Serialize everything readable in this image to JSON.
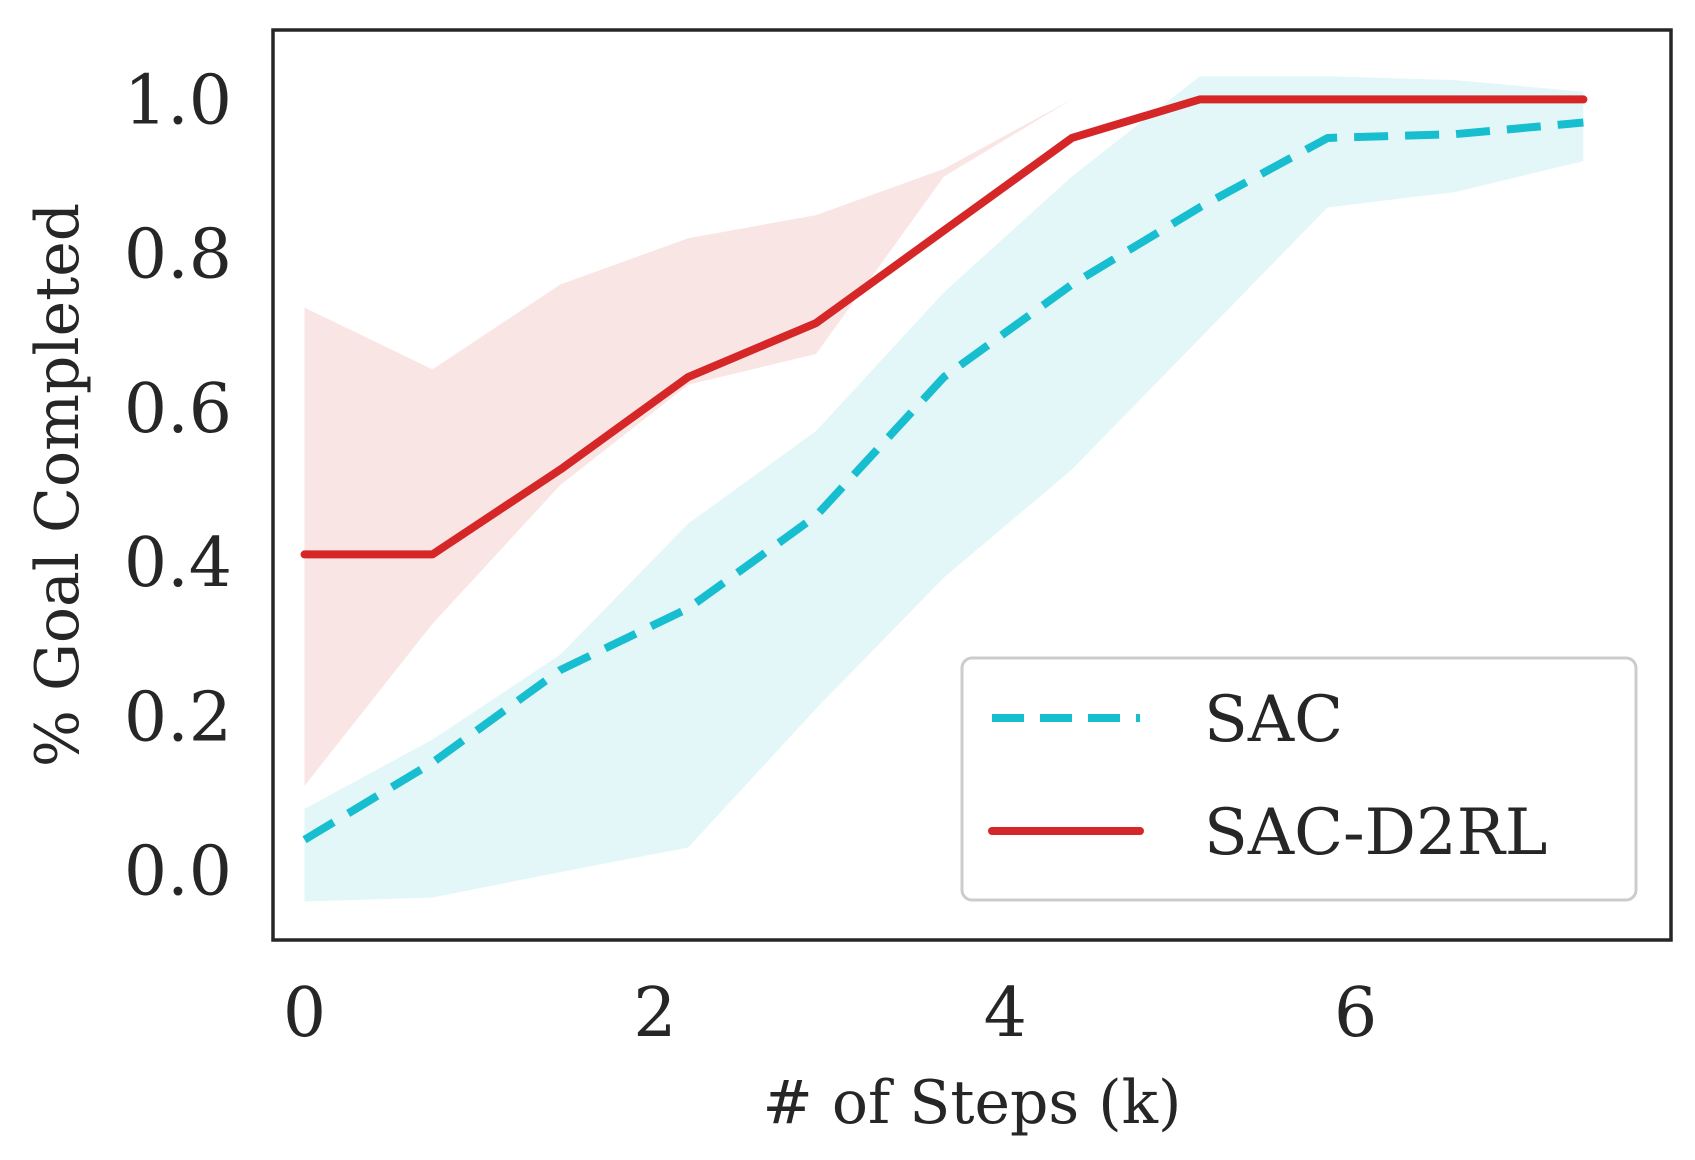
{
  "chart_data": {
    "type": "line",
    "title": "",
    "xlabel": "# of Steps (k)",
    "ylabel": "% Goal Completed",
    "xlim": [
      -0.18,
      7.8
    ],
    "ylim": [
      -0.09,
      1.09
    ],
    "xticks": [
      0,
      2,
      4,
      6
    ],
    "yticks": [
      0.0,
      0.2,
      0.4,
      0.6,
      0.8,
      1.0
    ],
    "x": [
      0,
      0.73,
      1.46,
      2.19,
      2.92,
      3.65,
      4.38,
      5.11,
      5.84,
      6.57,
      7.3
    ],
    "grid": false,
    "legend_position": "lower-right",
    "series": [
      {
        "name": "SAC",
        "color": "#17becf",
        "style": "dashed",
        "values": [
          0.04,
          0.14,
          0.26,
          0.34,
          0.46,
          0.64,
          0.76,
          0.86,
          0.95,
          0.955,
          0.97
        ],
        "band_lower": [
          -0.04,
          -0.035,
          -0.002,
          0.03,
          0.21,
          0.38,
          0.52,
          0.69,
          0.86,
          0.88,
          0.92
        ],
        "band_upper": [
          0.08,
          0.17,
          0.28,
          0.45,
          0.57,
          0.75,
          0.9,
          1.03,
          1.03,
          1.025,
          1.01
        ]
      },
      {
        "name": "SAC-D2RL",
        "color": "#d62728",
        "style": "solid",
        "values": [
          0.41,
          0.41,
          0.52,
          0.64,
          0.71,
          0.83,
          0.95,
          1.0,
          1.0,
          1.0,
          1.0
        ],
        "band_lower": [
          0.11,
          0.32,
          0.5,
          0.63,
          0.67,
          0.9,
          1.0,
          1.0,
          1.0,
          1.0,
          1.0
        ],
        "band_upper": [
          0.73,
          0.65,
          0.76,
          0.82,
          0.85,
          0.91,
          1.0,
          1.0,
          1.0,
          1.0,
          1.0
        ]
      }
    ]
  }
}
